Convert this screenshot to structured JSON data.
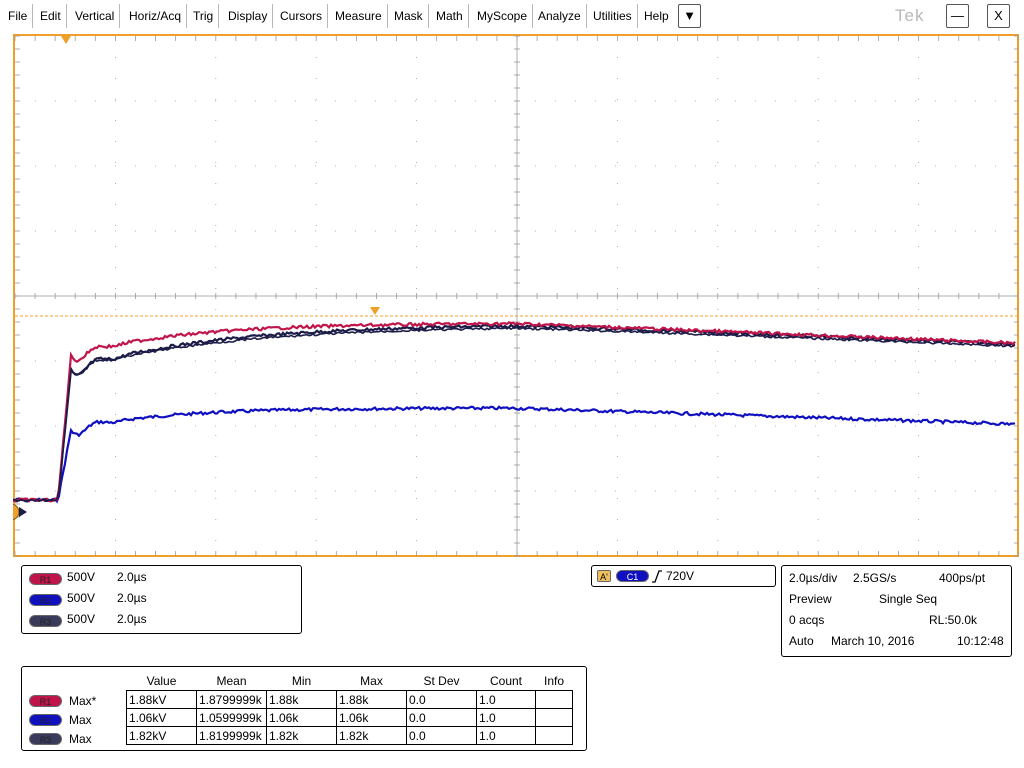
{
  "menu": {
    "items": [
      "File",
      "Edit",
      "Vertical",
      "Horiz/Acq",
      "Trig",
      "Display",
      "Cursors",
      "Measure",
      "Mask",
      "Math",
      "MyScope",
      "Analyze",
      "Utilities",
      "Help"
    ],
    "dropdown_glyph": "▼",
    "brand": "Tek",
    "minimize_glyph": "—",
    "close_glyph": "X"
  },
  "colors": {
    "accent": "#f0a028",
    "r1": "#c0154a",
    "r2": "#1010c0",
    "r3": "#1c1c48",
    "grid": "#9a9a9a"
  },
  "channels": [
    {
      "badge": "R1",
      "scale": "500V",
      "time": "2.0µs"
    },
    {
      "badge": "R2",
      "scale": "500V",
      "time": "2.0µs"
    },
    {
      "badge": "R3",
      "scale": "500V",
      "time": "2.0µs"
    }
  ],
  "trigger": {
    "a_label": "A'",
    "source": "C1",
    "slope_icon": "rising-edge-icon",
    "level": "720V"
  },
  "acquisition": {
    "time_div": "2.0µs/div",
    "sample_rate": "2.5GS/s",
    "pts": "400ps/pt",
    "mode": "Preview",
    "seq": "Single Seq",
    "acqs": "0 acqs",
    "rl": "RL:50.0k",
    "trig_mode": "Auto",
    "date": "March 10, 2016",
    "time": "10:12:48"
  },
  "measurements": {
    "headers": [
      "Value",
      "Mean",
      "Min",
      "Max",
      "St Dev",
      "Count",
      "Info"
    ],
    "rows": [
      {
        "badge": "R1",
        "type": "Max*",
        "cells": [
          "1.88kV",
          "1.8799999k",
          "1.88k",
          "1.88k",
          "0.0",
          "1.0",
          ""
        ]
      },
      {
        "badge": "R2",
        "type": "Max",
        "cells": [
          "1.06kV",
          "1.0599999k",
          "1.06k",
          "1.06k",
          "0.0",
          "1.0",
          ""
        ]
      },
      {
        "badge": "R3",
        "type": "Max",
        "cells": [
          "1.82kV",
          "1.8199999k",
          "1.82k",
          "1.82k",
          "0.0",
          "1.0",
          ""
        ]
      }
    ]
  }
}
